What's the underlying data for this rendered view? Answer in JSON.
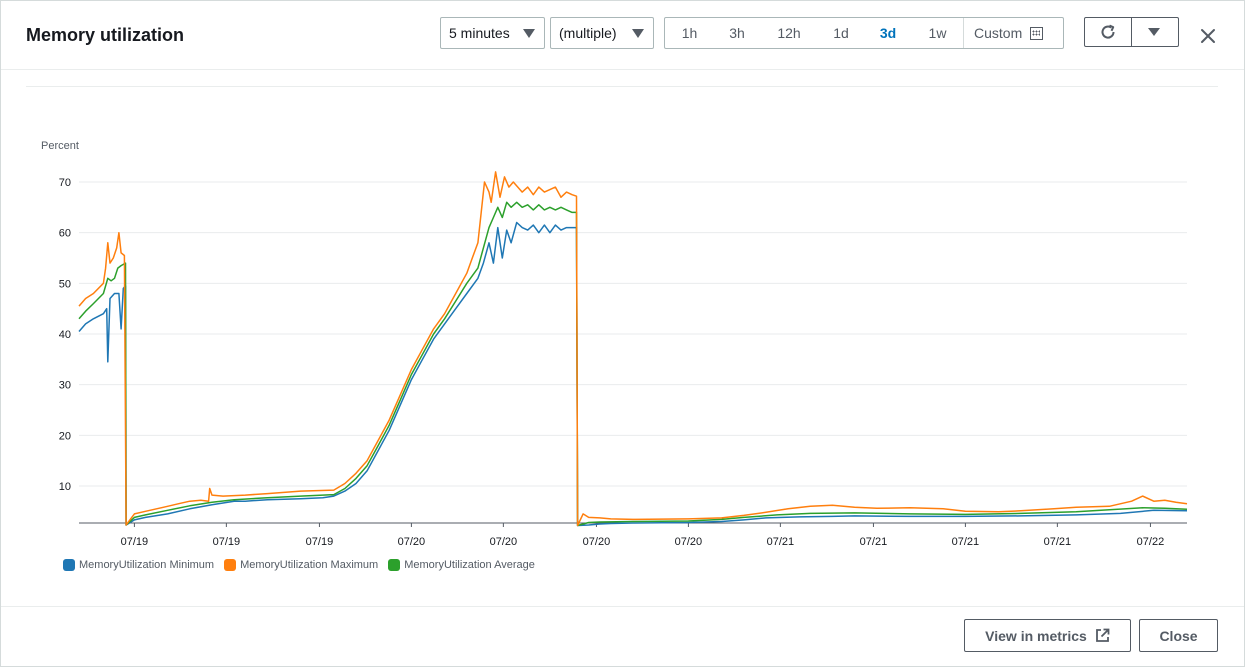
{
  "header": {
    "title": "Memory utilization",
    "period_select": "5 minutes",
    "stat_select": "(multiple)",
    "ranges": [
      "1h",
      "3h",
      "12h",
      "1d",
      "3d",
      "1w"
    ],
    "active_range": "3d",
    "custom_label": "Custom"
  },
  "footer": {
    "view_in_metrics": "View in metrics",
    "close": "Close"
  },
  "colors": {
    "minimum": "#1f77b4",
    "maximum": "#ff7f0e",
    "average": "#2ca02c",
    "accent": "#0073bb"
  },
  "icons": {
    "refresh": "refresh-icon",
    "dropdown": "chevron-down-icon",
    "close": "close-icon",
    "calendar": "calendar-icon",
    "external": "external-link-icon"
  },
  "chart_data": {
    "type": "line",
    "ylabel": "Percent",
    "yticks": [
      10,
      20,
      30,
      40,
      50,
      60,
      70
    ],
    "ylim": [
      2,
      72
    ],
    "xlim": [
      0,
      100
    ],
    "xticks": [
      {
        "x": 5,
        "label": "07/19"
      },
      {
        "x": 13.3,
        "label": "07/19"
      },
      {
        "x": 21.7,
        "label": "07/19"
      },
      {
        "x": 30,
        "label": "07/20"
      },
      {
        "x": 38.3,
        "label": "07/20"
      },
      {
        "x": 46.7,
        "label": "07/20"
      },
      {
        "x": 55,
        "label": "07/20"
      },
      {
        "x": 63.3,
        "label": "07/21"
      },
      {
        "x": 71.7,
        "label": "07/21"
      },
      {
        "x": 80,
        "label": "07/21"
      },
      {
        "x": 88.3,
        "label": "07/21"
      },
      {
        "x": 96.7,
        "label": "07/22"
      }
    ],
    "grid": true,
    "legend_position": "bottom-left",
    "series": [
      {
        "name": "MemoryUtilization Minimum",
        "color": "#1f77b4",
        "points": [
          [
            0,
            40.5
          ],
          [
            0.6,
            42
          ],
          [
            1.3,
            43
          ],
          [
            2.2,
            44
          ],
          [
            2.5,
            45
          ],
          [
            2.6,
            34.5
          ],
          [
            2.8,
            47
          ],
          [
            3.2,
            48
          ],
          [
            3.6,
            48
          ],
          [
            3.8,
            41
          ],
          [
            4.0,
            49
          ],
          [
            4.2,
            49.5
          ],
          [
            4.25,
            2.3
          ],
          [
            5,
            3.3
          ],
          [
            6,
            3.8
          ],
          [
            8,
            4.5
          ],
          [
            10,
            5.5
          ],
          [
            12,
            6.3
          ],
          [
            14,
            7
          ],
          [
            15,
            7
          ],
          [
            17,
            7.3
          ],
          [
            20,
            7.5
          ],
          [
            22,
            7.7
          ],
          [
            23,
            8
          ],
          [
            24,
            9
          ],
          [
            25,
            10.5
          ],
          [
            26,
            13
          ],
          [
            27,
            17
          ],
          [
            28,
            21
          ],
          [
            29,
            26
          ],
          [
            30,
            31
          ],
          [
            31,
            35
          ],
          [
            32,
            39
          ],
          [
            33,
            42
          ],
          [
            34,
            45
          ],
          [
            35,
            48
          ],
          [
            36,
            51
          ],
          [
            36.5,
            54
          ],
          [
            37,
            58
          ],
          [
            37.4,
            54
          ],
          [
            37.8,
            61
          ],
          [
            38.2,
            55
          ],
          [
            38.6,
            60.5
          ],
          [
            39,
            58
          ],
          [
            39.5,
            62
          ],
          [
            40,
            61
          ],
          [
            40.5,
            60.5
          ],
          [
            41,
            61.5
          ],
          [
            41.5,
            60
          ],
          [
            42,
            61.5
          ],
          [
            42.5,
            60
          ],
          [
            43,
            61.5
          ],
          [
            43.5,
            60.5
          ],
          [
            44,
            61
          ],
          [
            44.5,
            61
          ],
          [
            44.9,
            61
          ],
          [
            45.0,
            2.2
          ],
          [
            46,
            2.3
          ],
          [
            47,
            2.5
          ],
          [
            48,
            2.6
          ],
          [
            50,
            2.7
          ],
          [
            55,
            2.8
          ],
          [
            58,
            3.0
          ],
          [
            60,
            3.3
          ],
          [
            62,
            3.7
          ],
          [
            65,
            3.9
          ],
          [
            68,
            4.0
          ],
          [
            70,
            4.1
          ],
          [
            75,
            4.0
          ],
          [
            80,
            4.0
          ],
          [
            85,
            4.1
          ],
          [
            90,
            4.3
          ],
          [
            94,
            4.6
          ],
          [
            97,
            5.2
          ],
          [
            100,
            5.1
          ]
        ]
      },
      {
        "name": "MemoryUtilization Maximum",
        "color": "#ff7f0e",
        "points": [
          [
            0,
            45.5
          ],
          [
            0.6,
            47
          ],
          [
            1.3,
            48
          ],
          [
            2.2,
            50
          ],
          [
            2.4,
            53
          ],
          [
            2.6,
            58
          ],
          [
            2.8,
            54
          ],
          [
            3.1,
            55
          ],
          [
            3.4,
            57
          ],
          [
            3.6,
            60
          ],
          [
            3.8,
            56
          ],
          [
            4.1,
            55.5
          ],
          [
            4.25,
            2.3
          ],
          [
            5,
            4.5
          ],
          [
            6,
            5
          ],
          [
            7,
            5.5
          ],
          [
            8,
            6
          ],
          [
            9,
            6.5
          ],
          [
            10,
            7
          ],
          [
            11,
            7.2
          ],
          [
            11.7,
            7
          ],
          [
            11.8,
            9.5
          ],
          [
            12,
            8.2
          ],
          [
            13,
            8
          ],
          [
            15,
            8.2
          ],
          [
            17,
            8.5
          ],
          [
            20,
            9
          ],
          [
            23,
            9.2
          ],
          [
            24,
            10.5
          ],
          [
            25,
            12.5
          ],
          [
            26,
            15
          ],
          [
            27,
            19
          ],
          [
            28,
            23
          ],
          [
            29,
            28
          ],
          [
            30,
            33
          ],
          [
            31,
            37
          ],
          [
            32,
            41
          ],
          [
            33,
            44
          ],
          [
            34,
            48
          ],
          [
            35,
            52
          ],
          [
            35.5,
            55
          ],
          [
            36,
            58
          ],
          [
            36.3,
            64
          ],
          [
            36.6,
            70
          ],
          [
            37,
            68
          ],
          [
            37.2,
            66
          ],
          [
            37.6,
            72
          ],
          [
            38,
            67
          ],
          [
            38.4,
            71
          ],
          [
            38.8,
            69
          ],
          [
            39.2,
            70
          ],
          [
            39.6,
            69
          ],
          [
            40,
            68
          ],
          [
            40.5,
            69
          ],
          [
            41,
            67.5
          ],
          [
            41.5,
            69
          ],
          [
            42,
            68
          ],
          [
            42.5,
            68.5
          ],
          [
            43,
            69
          ],
          [
            43.5,
            67
          ],
          [
            44,
            68
          ],
          [
            44.5,
            67.5
          ],
          [
            44.9,
            67.2
          ],
          [
            45.0,
            2.2
          ],
          [
            45.5,
            4.5
          ],
          [
            46,
            3.8
          ],
          [
            47,
            3.7
          ],
          [
            48,
            3.5
          ],
          [
            50,
            3.4
          ],
          [
            55,
            3.5
          ],
          [
            58,
            3.7
          ],
          [
            60,
            4.2
          ],
          [
            62,
            4.8
          ],
          [
            64,
            5.5
          ],
          [
            66,
            6.0
          ],
          [
            68,
            6.2
          ],
          [
            70,
            5.8
          ],
          [
            72,
            5.6
          ],
          [
            75,
            5.7
          ],
          [
            78,
            5.5
          ],
          [
            80,
            5.0
          ],
          [
            83,
            4.9
          ],
          [
            85,
            5.1
          ],
          [
            88,
            5.5
          ],
          [
            90,
            5.8
          ],
          [
            93,
            6.0
          ],
          [
            95,
            7.0
          ],
          [
            96,
            8.0
          ],
          [
            97,
            7.0
          ],
          [
            98,
            7.2
          ],
          [
            99,
            6.8
          ],
          [
            100,
            6.5
          ]
        ]
      },
      {
        "name": "MemoryUtilization Average",
        "color": "#2ca02c",
        "points": [
          [
            0,
            43
          ],
          [
            0.6,
            44.5
          ],
          [
            1.3,
            46
          ],
          [
            2.2,
            48
          ],
          [
            2.6,
            51
          ],
          [
            2.9,
            50.5
          ],
          [
            3.2,
            51
          ],
          [
            3.5,
            53
          ],
          [
            3.8,
            53.5
          ],
          [
            4.2,
            54
          ],
          [
            4.25,
            2.3
          ],
          [
            5,
            3.8
          ],
          [
            6,
            4.3
          ],
          [
            8,
            5.2
          ],
          [
            10,
            6.1
          ],
          [
            12,
            6.8
          ],
          [
            14,
            7.3
          ],
          [
            17,
            7.7
          ],
          [
            20,
            8
          ],
          [
            23,
            8.3
          ],
          [
            24,
            9.5
          ],
          [
            25,
            11.5
          ],
          [
            26,
            14
          ],
          [
            27,
            18
          ],
          [
            28,
            22
          ],
          [
            29,
            27
          ],
          [
            30,
            32
          ],
          [
            31,
            36
          ],
          [
            32,
            40
          ],
          [
            33,
            43
          ],
          [
            34,
            46.5
          ],
          [
            35,
            50
          ],
          [
            36,
            53
          ],
          [
            36.5,
            57
          ],
          [
            37,
            61
          ],
          [
            37.4,
            63
          ],
          [
            37.8,
            65
          ],
          [
            38.2,
            63
          ],
          [
            38.6,
            66
          ],
          [
            39,
            65
          ],
          [
            39.5,
            66
          ],
          [
            40,
            65
          ],
          [
            40.5,
            65.5
          ],
          [
            41,
            64.5
          ],
          [
            41.5,
            65.5
          ],
          [
            42,
            64.5
          ],
          [
            42.5,
            65
          ],
          [
            43,
            64.5
          ],
          [
            43.5,
            65
          ],
          [
            44,
            64.5
          ],
          [
            44.5,
            64
          ],
          [
            44.9,
            64
          ],
          [
            45.0,
            2.2
          ],
          [
            46,
            2.8
          ],
          [
            47,
            2.9
          ],
          [
            50,
            3.0
          ],
          [
            55,
            3.1
          ],
          [
            58,
            3.4
          ],
          [
            60,
            3.8
          ],
          [
            63,
            4.3
          ],
          [
            66,
            4.6
          ],
          [
            70,
            4.7
          ],
          [
            75,
            4.5
          ],
          [
            80,
            4.4
          ],
          [
            85,
            4.6
          ],
          [
            90,
            4.9
          ],
          [
            93,
            5.3
          ],
          [
            96,
            5.7
          ],
          [
            98,
            5.6
          ],
          [
            100,
            5.4
          ]
        ]
      }
    ]
  }
}
